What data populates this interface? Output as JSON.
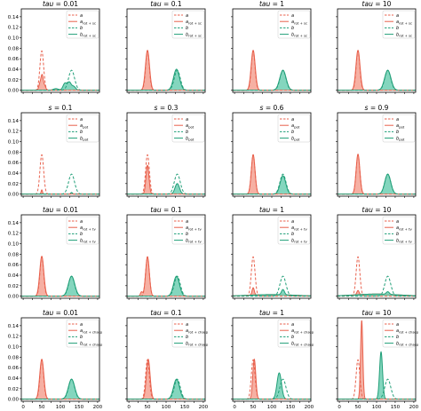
{
  "colors": {
    "a": "#e8604c",
    "b": "#1f9e77",
    "a_fill": "#f4a293",
    "b_fill": "#6fcfb3"
  },
  "layout_grid": {
    "rows": 4,
    "cols": 4
  },
  "axis": {
    "xlim": [
      -5,
      205
    ],
    "ylim": [
      -0.004,
      0.155
    ],
    "xticks": [
      0,
      25,
      50,
      75,
      100,
      125,
      150,
      175,
      200
    ],
    "xtick_labels": [
      "0",
      "25",
      "50",
      "75",
      "100",
      "125",
      "150",
      "175",
      "200"
    ],
    "yticks": [
      0.0,
      0.02,
      0.04,
      0.06,
      0.08,
      0.1,
      0.12,
      0.14
    ],
    "ytick_labels": [
      "0.00",
      "0.02",
      "0.04",
      "0.06",
      "0.08",
      "0.10",
      "0.12",
      "0.14"
    ]
  },
  "chart_data": [
    {
      "type": "area",
      "title_var": "tau",
      "title_val": " = 0.01",
      "legend": [
        {
          "base": "a",
          "sub": ""
        },
        {
          "base": "a",
          "sub": "rot + sc"
        },
        {
          "base": "b",
          "sub": ""
        },
        {
          "base": "b",
          "sub": "rot + sc"
        }
      ],
      "curves": {
        "a_ref": [
          50,
          5,
          0.075
        ],
        "b_ref": [
          130,
          8,
          0.038
        ],
        "a": [
          [
            45,
            3,
            0.012
          ],
          [
            51,
            3,
            0.028
          ],
          [
            58,
            3,
            0.008
          ]
        ],
        "b": [
          [
            88,
            7,
            0.003
          ],
          [
            112,
            5,
            0.013
          ],
          [
            124,
            5,
            0.015
          ],
          [
            136,
            5,
            0.007
          ]
        ]
      }
    },
    {
      "type": "area",
      "title_var": "tau",
      "title_val": " = 0.1",
      "legend": [
        {
          "base": "a",
          "sub": ""
        },
        {
          "base": "a",
          "sub": "rot + sc"
        },
        {
          "base": "b",
          "sub": ""
        },
        {
          "base": "b",
          "sub": "rot + sc"
        }
      ],
      "curves": {
        "a_ref": [
          50,
          5,
          0.075
        ],
        "b_ref": [
          130,
          8,
          0.038
        ],
        "a": [
          [
            50,
            5.5,
            0.076
          ]
        ],
        "b": [
          [
            128,
            8,
            0.04
          ]
        ]
      }
    },
    {
      "type": "area",
      "title_var": "tau",
      "title_val": " = 1",
      "legend": [
        {
          "base": "a",
          "sub": ""
        },
        {
          "base": "a",
          "sub": "rot + sc"
        },
        {
          "base": "b",
          "sub": ""
        },
        {
          "base": "b",
          "sub": "rot + sc"
        }
      ],
      "curves": {
        "a_ref": [
          50,
          5,
          0.075
        ],
        "b_ref": [
          130,
          8,
          0.038
        ],
        "a": [
          [
            50,
            5.5,
            0.076
          ]
        ],
        "b": [
          [
            130,
            8.5,
            0.038
          ]
        ]
      }
    },
    {
      "type": "area",
      "title_var": "tau",
      "title_val": " = 10",
      "legend": [
        {
          "base": "a",
          "sub": ""
        },
        {
          "base": "a",
          "sub": "rot + sc"
        },
        {
          "base": "b",
          "sub": ""
        },
        {
          "base": "b",
          "sub": "rot + sc"
        }
      ],
      "curves": {
        "a_ref": [
          50,
          5,
          0.075
        ],
        "b_ref": [
          130,
          8,
          0.038
        ],
        "a": [
          [
            50,
            5.5,
            0.076
          ]
        ],
        "b": [
          [
            130,
            8.5,
            0.038
          ]
        ]
      }
    },
    {
      "type": "area",
      "title_var": "s",
      "title_val": " = 0.1",
      "legend": [
        {
          "base": "a",
          "sub": ""
        },
        {
          "base": "a",
          "sub": "pot"
        },
        {
          "base": "b",
          "sub": ""
        },
        {
          "base": "b",
          "sub": "pot"
        }
      ],
      "curves": {
        "a_ref": [
          50,
          5,
          0.075
        ],
        "b_ref": [
          130,
          8,
          0.038
        ],
        "a": [
          [
            50,
            1.8,
            0.008
          ]
        ],
        "b": [
          [
            130,
            2.5,
            0.003
          ]
        ]
      }
    },
    {
      "type": "area",
      "title_var": "s",
      "title_val": " = 0.3",
      "legend": [
        {
          "base": "a",
          "sub": ""
        },
        {
          "base": "a",
          "sub": "pot"
        },
        {
          "base": "b",
          "sub": ""
        },
        {
          "base": "b",
          "sub": "pot"
        }
      ],
      "curves": {
        "a_ref": [
          50,
          5,
          0.075
        ],
        "b_ref": [
          130,
          8,
          0.038
        ],
        "a": [
          [
            50,
            4,
            0.055
          ]
        ],
        "b": [
          [
            130,
            6,
            0.02
          ]
        ]
      }
    },
    {
      "type": "area",
      "title_var": "s",
      "title_val": " = 0.6",
      "legend": [
        {
          "base": "a",
          "sub": ""
        },
        {
          "base": "a",
          "sub": "pot"
        },
        {
          "base": "b",
          "sub": ""
        },
        {
          "base": "b",
          "sub": "pot"
        }
      ],
      "curves": {
        "a_ref": [
          50,
          5,
          0.075
        ],
        "b_ref": [
          130,
          8,
          0.038
        ],
        "a": [
          [
            50,
            5,
            0.075
          ]
        ],
        "b": [
          [
            130,
            7.5,
            0.035
          ]
        ]
      }
    },
    {
      "type": "area",
      "title_var": "s",
      "title_val": " = 0.9",
      "legend": [
        {
          "base": "a",
          "sub": ""
        },
        {
          "base": "a",
          "sub": "pot"
        },
        {
          "base": "b",
          "sub": ""
        },
        {
          "base": "b",
          "sub": "pot"
        }
      ],
      "curves": {
        "a_ref": [
          50,
          5,
          0.075
        ],
        "b_ref": [
          130,
          8,
          0.038
        ],
        "a": [
          [
            50,
            5,
            0.076
          ]
        ],
        "b": [
          [
            130,
            8,
            0.038
          ]
        ]
      }
    },
    {
      "type": "area",
      "title_var": "tau",
      "title_val": " = 0.01",
      "legend": [
        {
          "base": "a",
          "sub": ""
        },
        {
          "base": "a",
          "sub": "rot + tv"
        },
        {
          "base": "b",
          "sub": ""
        },
        {
          "base": "b",
          "sub": "rot + tv"
        }
      ],
      "curves": {
        "a_ref": [
          50,
          5,
          0.075
        ],
        "b_ref": [
          130,
          8,
          0.038
        ],
        "a": [
          [
            50,
            5.5,
            0.076
          ]
        ],
        "b": [
          [
            130,
            8.5,
            0.038
          ]
        ]
      }
    },
    {
      "type": "area",
      "title_var": "tau",
      "title_val": " = 0.1",
      "legend": [
        {
          "base": "a",
          "sub": ""
        },
        {
          "base": "a",
          "sub": "rot + tv"
        },
        {
          "base": "b",
          "sub": ""
        },
        {
          "base": "b",
          "sub": "rot + tv"
        }
      ],
      "curves": {
        "a_ref": [
          50,
          5,
          0.075
        ],
        "b_ref": [
          130,
          8,
          0.038
        ],
        "a": [
          [
            50,
            5,
            0.075
          ],
          [
            34,
            3,
            0.008
          ]
        ],
        "b": [
          [
            128,
            8,
            0.038
          ]
        ]
      }
    },
    {
      "type": "area",
      "title_var": "tau",
      "title_val": " = 1",
      "legend": [
        {
          "base": "a",
          "sub": ""
        },
        {
          "base": "a",
          "sub": "rot + tv"
        },
        {
          "base": "b",
          "sub": ""
        },
        {
          "base": "b",
          "sub": "rot + tv"
        }
      ],
      "curves": {
        "a_ref": [
          50,
          5,
          0.075
        ],
        "b_ref": [
          130,
          8,
          0.038
        ],
        "a": [
          [
            50,
            3,
            0.014
          ],
          [
            100,
            60,
            0.003
          ]
        ],
        "b": [
          [
            130,
            4,
            0.01
          ],
          [
            100,
            60,
            0.003
          ]
        ]
      }
    },
    {
      "type": "area",
      "title_var": "tau",
      "title_val": " = 10",
      "legend": [
        {
          "base": "a",
          "sub": ""
        },
        {
          "base": "a",
          "sub": "rot + tv"
        },
        {
          "base": "b",
          "sub": ""
        },
        {
          "base": "b",
          "sub": "rot + tv"
        }
      ],
      "curves": {
        "a_ref": [
          50,
          5,
          0.075
        ],
        "b_ref": [
          130,
          8,
          0.038
        ],
        "a": [
          [
            50,
            3,
            0.008
          ],
          [
            100,
            60,
            0.004
          ]
        ],
        "b": [
          [
            130,
            4,
            0.005
          ],
          [
            100,
            60,
            0.004
          ]
        ]
      }
    },
    {
      "type": "area",
      "title_var": "tau",
      "title_val": " = 0.01",
      "legend": [
        {
          "base": "a",
          "sub": ""
        },
        {
          "base": "a",
          "sub": "rot + chsep"
        },
        {
          "base": "b",
          "sub": ""
        },
        {
          "base": "b",
          "sub": "rot + chsep"
        }
      ],
      "curves": {
        "a_ref": [
          50,
          5,
          0.075
        ],
        "b_ref": [
          130,
          8,
          0.038
        ],
        "a": [
          [
            50,
            5.5,
            0.076
          ]
        ],
        "b": [
          [
            130,
            8.5,
            0.038
          ]
        ]
      }
    },
    {
      "type": "area",
      "title_var": "tau",
      "title_val": " = 0.1",
      "legend": [
        {
          "base": "a",
          "sub": ""
        },
        {
          "base": "a",
          "sub": "rot + chsep"
        },
        {
          "base": "b",
          "sub": ""
        },
        {
          "base": "b",
          "sub": "rot + chsep"
        }
      ],
      "curves": {
        "a_ref": [
          50,
          5,
          0.075
        ],
        "b_ref": [
          130,
          8,
          0.038
        ],
        "a": [
          [
            52,
            5,
            0.076
          ]
        ],
        "b": [
          [
            128,
            8,
            0.038
          ]
        ]
      }
    },
    {
      "type": "area",
      "title_var": "tau",
      "title_val": " = 1",
      "legend": [
        {
          "base": "a",
          "sub": ""
        },
        {
          "base": "a",
          "sub": "rot + chsep"
        },
        {
          "base": "b",
          "sub": ""
        },
        {
          "base": "b",
          "sub": "rot + chsep"
        }
      ],
      "curves": {
        "a_ref": [
          50,
          5,
          0.075
        ],
        "b_ref": [
          130,
          8,
          0.038
        ],
        "a": [
          [
            53,
            4,
            0.076
          ]
        ],
        "b": [
          [
            120,
            6,
            0.05
          ]
        ]
      }
    },
    {
      "type": "area",
      "title_var": "tau",
      "title_val": " = 10",
      "legend": [
        {
          "base": "a",
          "sub": ""
        },
        {
          "base": "a",
          "sub": "rot + chsep"
        },
        {
          "base": "b",
          "sub": ""
        },
        {
          "base": "b",
          "sub": "rot + chsep"
        }
      ],
      "curves": {
        "a_ref": [
          50,
          5,
          0.075
        ],
        "b_ref": [
          130,
          8,
          0.038
        ],
        "a": [
          [
            60,
            3,
            0.15
          ]
        ],
        "b": [
          [
            112,
            4,
            0.09
          ]
        ]
      }
    }
  ]
}
